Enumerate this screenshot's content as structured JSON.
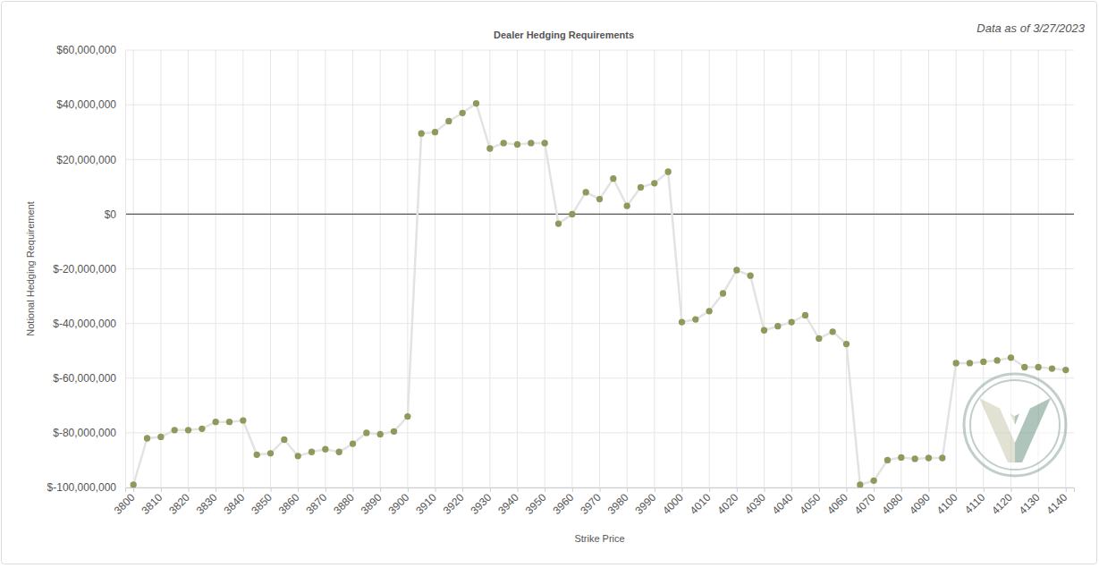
{
  "chart_data": {
    "type": "line",
    "title": "Dealer Hedging Requirements",
    "annotations": [
      "Data as of 3/27/2023"
    ],
    "x_label": "Strike Price",
    "y_label": "Notional Hedging Requirement",
    "x": [
      3800,
      3805,
      3810,
      3815,
      3820,
      3825,
      3830,
      3835,
      3840,
      3845,
      3850,
      3855,
      3860,
      3865,
      3870,
      3875,
      3880,
      3885,
      3890,
      3895,
      3900,
      3905,
      3910,
      3915,
      3920,
      3925,
      3930,
      3935,
      3940,
      3945,
      3950,
      3955,
      3960,
      3965,
      3970,
      3975,
      3980,
      3985,
      3990,
      3995,
      4000,
      4005,
      4010,
      4015,
      4020,
      4025,
      4030,
      4035,
      4040,
      4045,
      4050,
      4055,
      4060,
      4065,
      4070,
      4075,
      4080,
      4085,
      4090,
      4095,
      4100,
      4105,
      4110,
      4115,
      4120,
      4125,
      4130,
      4135,
      4140
    ],
    "values": [
      -99000000,
      -82000000,
      -81500000,
      -79000000,
      -79000000,
      -78500000,
      -76000000,
      -76000000,
      -75500000,
      -88000000,
      -87500000,
      -82500000,
      -88500000,
      -87000000,
      -86000000,
      -87000000,
      -84000000,
      -80000000,
      -80500000,
      -79500000,
      -74000000,
      29500000,
      30000000,
      34000000,
      37000000,
      40500000,
      24000000,
      26000000,
      25500000,
      26000000,
      26000000,
      -3500000,
      0,
      8000000,
      5500000,
      13000000,
      3000000,
      9800000,
      11300000,
      15500000,
      -39500000,
      -38500000,
      -35500000,
      -29000000,
      -20500000,
      -22500000,
      -42500000,
      -41000000,
      -39500000,
      -37000000,
      -45500000,
      -43000000,
      -47500000,
      -99000000,
      -97500000,
      -90000000,
      -89000000,
      -89500000,
      -89200000,
      -89200000,
      -54500000,
      -54500000,
      -54000000,
      -53500000,
      -52500000,
      -56000000,
      -56000000,
      -56500000,
      -57000000
    ],
    "color": "#8c9a5b",
    "marker": "circle",
    "line_style": "solid",
    "grid": true,
    "xlim": [
      3797,
      4143
    ],
    "xticks": [
      3800,
      3810,
      3820,
      3830,
      3840,
      3850,
      3860,
      3870,
      3880,
      3890,
      3900,
      3910,
      3920,
      3930,
      3940,
      3950,
      3960,
      3970,
      3980,
      3990,
      4000,
      4010,
      4020,
      4030,
      4040,
      4050,
      4060,
      4070,
      4080,
      4090,
      4100,
      4110,
      4120,
      4130,
      4140
    ],
    "ylim": [
      -100000000,
      60000000
    ],
    "yticks": [
      {
        "value": -100000000,
        "label": "$-100,000,000"
      },
      {
        "value": -80000000,
        "label": "$-80,000,000"
      },
      {
        "value": -60000000,
        "label": "$-60,000,000"
      },
      {
        "value": -40000000,
        "label": "$-40,000,000"
      },
      {
        "value": -20000000,
        "label": "$-20,000,000"
      },
      {
        "value": 0,
        "label": "$0"
      },
      {
        "value": 20000000,
        "label": "$20,000,000"
      },
      {
        "value": 40000000,
        "label": "$40,000,000"
      },
      {
        "value": 60000000,
        "label": "$60,000,000"
      }
    ]
  }
}
